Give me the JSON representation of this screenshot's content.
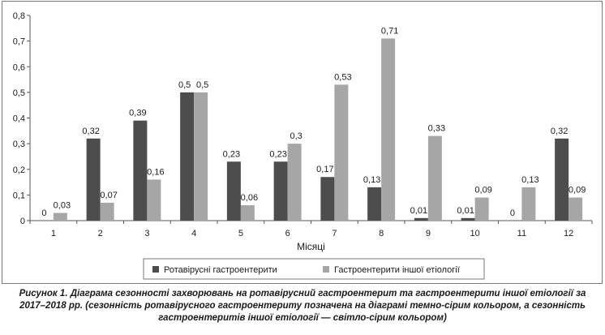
{
  "chart_data": {
    "type": "bar",
    "categories": [
      "1",
      "2",
      "3",
      "4",
      "5",
      "6",
      "7",
      "8",
      "9",
      "10",
      "11",
      "12"
    ],
    "series": [
      {
        "name": "Ротавірусні гастроентерити",
        "color": "#4d4d4d",
        "values": [
          0,
          0.32,
          0.39,
          0.5,
          0.23,
          0.23,
          0.17,
          0.13,
          0.01,
          0.01,
          0,
          0.32
        ],
        "labels": [
          "0",
          "0,32",
          "0,39",
          "0,5",
          "0,23",
          "0,23",
          "0,17",
          "0,13",
          "0,01",
          "0,01",
          "0",
          "0,32"
        ]
      },
      {
        "name": "Гастроентерити іншої етіології",
        "color": "#a6a6a6",
        "values": [
          0.03,
          0.07,
          0.16,
          0.5,
          0.06,
          0.3,
          0.53,
          0.71,
          0.33,
          0.09,
          0.13,
          0.09
        ],
        "labels": [
          "0,03",
          "0,07",
          "0,16",
          "0,5",
          "0,06",
          "0,3",
          "0,53",
          "0,71",
          "0,33",
          "0,09",
          "0,13",
          "0,09"
        ]
      }
    ],
    "ylim": [
      0,
      0.8
    ],
    "yticks": [
      "0",
      "0,1",
      "0,2",
      "0,3",
      "0,4",
      "0,5",
      "0,6",
      "0,7",
      "0,8"
    ],
    "xlabel": "Місяці",
    "ylabel": "",
    "grid": false,
    "legend_position": "bottom"
  },
  "caption": "Рисунок 1. Діаграма сезонності захворювань на ротавірусний гастроентерит та гастроентерити іншої етіології за 2017–2018 рр. (сезонність ротавірусного гастроентериту позначена на діаграмі темно-сірим кольором, а сезонність гастроентеритів іншої етіології — світло-сірим кольором)"
}
